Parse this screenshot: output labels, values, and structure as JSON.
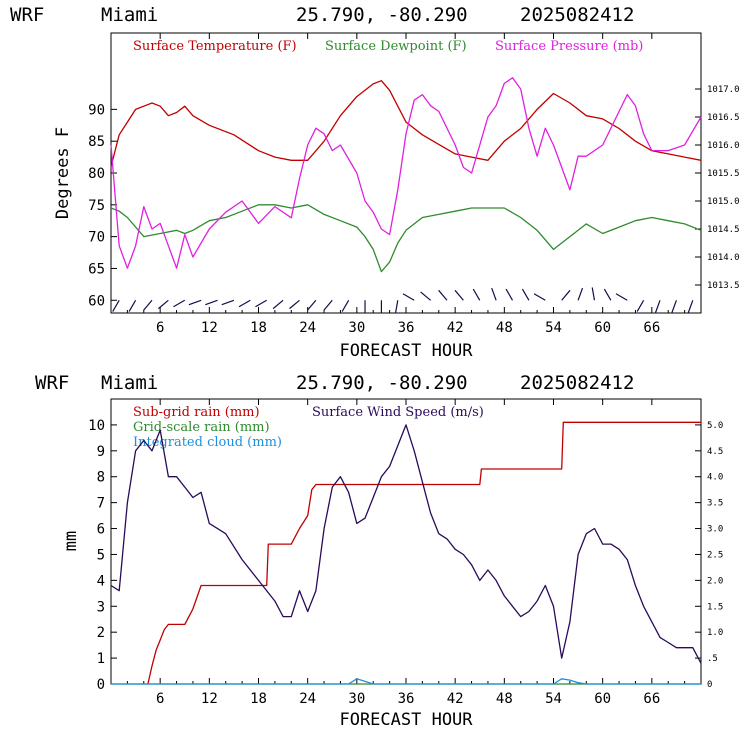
{
  "chart_data": [
    {
      "type": "line",
      "header": {
        "model": "WRF",
        "station": "Miami",
        "coords": "25.790, -80.290",
        "run": "2025082412"
      },
      "xlabel": "FORECAST HOUR",
      "ylabel": "Degrees F",
      "xlim": [
        0,
        72
      ],
      "xticks": [
        "6",
        "12",
        "18",
        "24",
        "30",
        "36",
        "42",
        "48",
        "54",
        "60",
        "66"
      ],
      "ylim": [
        58,
        102
      ],
      "yticks": [
        "60",
        "65",
        "70",
        "75",
        "80",
        "85",
        "90"
      ],
      "y2lim": [
        1013.0,
        1018.0
      ],
      "y2ticks": [
        "1013.5",
        "1014.0",
        "1014.5",
        "1015.0",
        "1015.5",
        "1016.0",
        "1016.5",
        "1017.0"
      ],
      "series": [
        {
          "name": "Surface Temperature (F)",
          "color": "#c00000",
          "axis": "left",
          "x": [
            0,
            1,
            2,
            3,
            4,
            5,
            6,
            7,
            8,
            9,
            10,
            12,
            15,
            18,
            20,
            22,
            24,
            26,
            28,
            30,
            32,
            33,
            34,
            36,
            38,
            40,
            42,
            44,
            46,
            48,
            50,
            52,
            54,
            56,
            58,
            60,
            62,
            64,
            66,
            68,
            70,
            72
          ],
          "values": [
            81,
            86,
            88,
            90,
            90.5,
            91,
            90.5,
            89,
            89.5,
            90.5,
            89,
            87.5,
            86,
            83.5,
            82.5,
            82,
            82,
            85,
            89,
            92,
            94,
            94.5,
            93,
            88,
            86,
            84.5,
            83,
            82.5,
            82,
            85,
            87,
            90,
            92.5,
            91,
            89,
            88.5,
            87,
            85,
            83.5,
            83,
            82.5,
            82
          ]
        },
        {
          "name": "Surface Dewpoint (F)",
          "color": "#2e8b2e",
          "axis": "left",
          "x": [
            0,
            1,
            2,
            4,
            6,
            8,
            9,
            10,
            12,
            14,
            16,
            18,
            20,
            22,
            24,
            26,
            28,
            30,
            31,
            32,
            33,
            34,
            35,
            36,
            38,
            40,
            42,
            44,
            46,
            48,
            50,
            52,
            53,
            54,
            56,
            58,
            60,
            62,
            64,
            66,
            68,
            70,
            72
          ],
          "values": [
            74.5,
            74,
            73,
            70,
            70.5,
            71,
            70.5,
            71,
            72.5,
            73,
            74,
            75,
            75,
            74.5,
            75,
            73.5,
            72.5,
            71.5,
            70,
            68,
            64.5,
            66,
            69,
            71,
            73,
            73.5,
            74,
            74.5,
            74.5,
            74.5,
            73,
            71,
            69.5,
            68,
            70,
            72,
            70.5,
            71.5,
            72.5,
            73,
            72.5,
            72,
            71
          ]
        },
        {
          "name": "Surface Pressure (mb)",
          "color": "#e020e0",
          "axis": "right",
          "x": [
            0,
            1,
            2,
            3,
            4,
            5,
            6,
            7,
            8,
            9,
            10,
            12,
            14,
            16,
            18,
            20,
            22,
            23,
            24,
            25,
            26,
            27,
            28,
            30,
            31,
            32,
            33,
            34,
            35,
            36,
            37,
            38,
            39,
            40,
            42,
            43,
            44,
            45,
            46,
            47,
            48,
            49,
            50,
            51,
            52,
            53,
            54,
            55,
            56,
            57,
            58,
            60,
            62,
            63,
            64,
            65,
            66,
            68,
            70,
            72
          ],
          "values": [
            1016.0,
            1014.2,
            1013.8,
            1014.2,
            1014.9,
            1014.5,
            1014.6,
            1014.2,
            1013.8,
            1014.4,
            1014.0,
            1014.5,
            1014.8,
            1015.0,
            1014.6,
            1014.9,
            1014.7,
            1015.4,
            1016.0,
            1016.3,
            1016.2,
            1015.9,
            1016.0,
            1015.5,
            1015.0,
            1014.8,
            1014.5,
            1014.4,
            1015.2,
            1016.2,
            1016.8,
            1016.9,
            1016.7,
            1016.6,
            1016.0,
            1015.6,
            1015.5,
            1016.0,
            1016.5,
            1016.7,
            1017.1,
            1017.2,
            1017.0,
            1016.3,
            1015.8,
            1016.3,
            1016.0,
            1015.6,
            1015.2,
            1015.8,
            1015.8,
            1016.0,
            1016.6,
            1016.9,
            1016.7,
            1016.2,
            1015.9,
            1015.9,
            1016.0,
            1016.5
          ]
        }
      ],
      "legend": [
        "Surface Temperature (F)",
        "Surface Dewpoint (F)",
        "Surface Pressure (mb)"
      ],
      "legend_placement": "top-left",
      "wind_barbs": {
        "x": [
          1,
          3,
          5,
          7,
          9,
          11,
          13,
          15,
          17,
          19,
          21,
          23,
          25,
          27,
          29,
          31,
          33,
          35,
          37,
          39,
          41,
          43,
          45,
          47,
          49,
          51,
          53,
          55,
          57,
          59,
          61,
          63,
          65,
          67,
          69,
          71
        ],
        "dir": [
          210,
          210,
          220,
          230,
          240,
          250,
          250,
          250,
          240,
          240,
          230,
          230,
          220,
          220,
          210,
          180,
          180,
          190,
          300,
          310,
          320,
          320,
          330,
          340,
          330,
          330,
          300,
          40,
          20,
          350,
          330,
          300,
          210,
          200,
          200,
          200
        ]
      }
    },
    {
      "type": "line",
      "header": {
        "model": "WRF",
        "station": "Miami",
        "coords": "25.790, -80.290",
        "run": "2025082412"
      },
      "xlabel": "FORECAST HOUR",
      "ylabel": "mm",
      "xlim": [
        0,
        72
      ],
      "xticks": [
        "6",
        "12",
        "18",
        "24",
        "30",
        "36",
        "42",
        "48",
        "54",
        "60",
        "66"
      ],
      "ylim": [
        0,
        11
      ],
      "yticks": [
        "0",
        "1",
        "2",
        "3",
        "4",
        "5",
        "6",
        "7",
        "8",
        "9",
        "10"
      ],
      "y2lim": [
        0,
        5.5
      ],
      "y2ticks": [
        "0",
        ".5",
        "1.0",
        "1.5",
        "2.0",
        "2.5",
        "3.0",
        "3.5",
        "4.0",
        "4.5",
        "5.0"
      ],
      "series": [
        {
          "name": "Sub-grid rain (mm)",
          "color": "#c00000",
          "axis": "left",
          "x": [
            4.5,
            5,
            5.5,
            6,
            6.5,
            7,
            8,
            9,
            10,
            11,
            19,
            19.2,
            22,
            23,
            24,
            24.5,
            25,
            45,
            45.2,
            55,
            55.2,
            72
          ],
          "values": [
            0,
            0.7,
            1.3,
            1.7,
            2.1,
            2.3,
            2.3,
            2.3,
            2.9,
            3.8,
            3.8,
            5.4,
            5.4,
            6.0,
            6.5,
            7.5,
            7.7,
            7.7,
            8.3,
            8.3,
            10.1,
            10.1
          ]
        },
        {
          "name": "Grid-scale rain (mm)",
          "color": "#2e8b2e",
          "axis": "left",
          "x": [
            0,
            72
          ],
          "values": [
            0,
            0
          ]
        },
        {
          "name": "Integrated cloud (mm)",
          "color": "#1f8fdc",
          "axis": "left",
          "x": [
            0,
            29,
            30,
            31,
            32,
            33,
            54,
            55,
            56,
            57,
            58,
            72
          ],
          "values": [
            0,
            0,
            0.2,
            0.1,
            0,
            0,
            0,
            0.2,
            0.15,
            0.05,
            0,
            0
          ]
        },
        {
          "name": "Surface Wind Speed (m/s)",
          "color": "#2a0a5a",
          "axis": "right",
          "x": [
            0,
            1,
            2,
            3,
            4,
            5,
            6,
            7,
            8,
            9,
            10,
            11,
            12,
            14,
            16,
            18,
            20,
            21,
            22,
            23,
            24,
            25,
            26,
            27,
            28,
            29,
            30,
            31,
            32,
            33,
            34,
            35,
            36,
            37,
            38,
            39,
            40,
            41,
            42,
            43,
            44,
            45,
            46,
            47,
            48,
            49,
            50,
            51,
            52,
            53,
            54,
            55,
            56,
            57,
            58,
            59,
            60,
            61,
            62,
            63,
            64,
            65,
            66,
            67,
            68,
            69,
            70,
            71,
            72
          ],
          "values": [
            1.9,
            1.8,
            3.5,
            4.5,
            4.7,
            4.5,
            4.9,
            4.0,
            4.0,
            3.8,
            3.6,
            3.7,
            3.1,
            2.9,
            2.4,
            2.0,
            1.6,
            1.3,
            1.3,
            1.8,
            1.4,
            1.8,
            3.0,
            3.8,
            4.0,
            3.7,
            3.1,
            3.2,
            3.6,
            4.0,
            4.2,
            4.6,
            5.0,
            4.5,
            3.9,
            3.3,
            2.9,
            2.8,
            2.6,
            2.5,
            2.3,
            2.0,
            2.2,
            2.0,
            1.7,
            1.5,
            1.3,
            1.4,
            1.6,
            1.9,
            1.5,
            0.5,
            1.2,
            2.5,
            2.9,
            3.0,
            2.7,
            2.7,
            2.6,
            2.4,
            1.9,
            1.5,
            1.2,
            0.9,
            0.8,
            0.7,
            0.7,
            0.7,
            0.4
          ]
        }
      ],
      "legend": [
        "Sub-grid rain (mm)",
        "Grid-scale rain (mm)",
        "Integrated cloud (mm)",
        "Surface Wind Speed (m/s)"
      ],
      "legend_placement": "top-left"
    }
  ]
}
